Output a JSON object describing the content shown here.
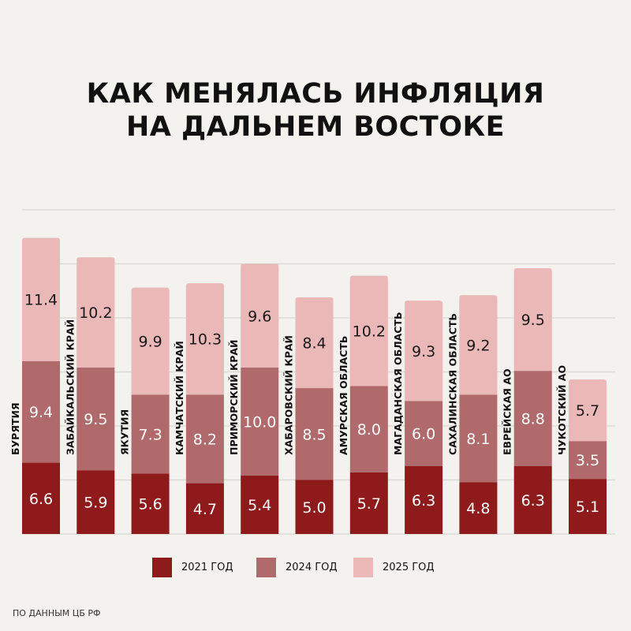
{
  "title_line1": "КАК МЕНЯЛАСЬ ИНФЛЯЦИЯ",
  "title_line2": "НА ДАЛЬНЕМ ВОСТОКЕ",
  "source": "ПО ДАННЫМ ЦБ РФ",
  "chart_data": {
    "type": "bar",
    "stacked": true,
    "title": "КАК МЕНЯЛАСЬ ИНФЛЯЦИЯ НА ДАЛЬНЕМ ВОСТОКЕ",
    "categories": [
      "БУРЯТИЯ",
      "ЗАБАЙКАЛЬСКИЙ КРАЙ",
      "ЯКУТИЯ",
      "КАМЧАТСКИЙ КРАЙ",
      "ПРИМОРСКИЙ КРАЙ",
      "ХАБАРОВСКИЙ КРАЙ",
      "АМУРСКАЯ ОБЛАСТЬ",
      "МАГАДАНСКАЯ ОБЛАСТЬ",
      "САХАЛИНСКАЯ ОБЛАСТЬ",
      "ЕВРЕЙСКАЯ АО",
      "ЧУКОТСКИЙ АО"
    ],
    "series": [
      {
        "name": "2021 ГОД",
        "color": "#8e1a1c",
        "values": [
          6.6,
          5.9,
          5.6,
          4.7,
          5.4,
          5.0,
          5.7,
          6.3,
          4.8,
          6.3,
          5.1
        ]
      },
      {
        "name": "2024 ГОД",
        "color": "#b06a6c",
        "values": [
          9.4,
          9.5,
          7.3,
          8.2,
          10.0,
          8.5,
          8.0,
          6.0,
          8.1,
          8.8,
          3.5
        ]
      },
      {
        "name": "2025 ГОД",
        "color": "#ebb8b8",
        "values": [
          11.4,
          10.2,
          9.9,
          10.3,
          9.6,
          8.4,
          10.2,
          9.3,
          9.2,
          9.5,
          5.7
        ]
      }
    ],
    "ylim": [
      0,
      30
    ],
    "grid": true,
    "legend": "bottom",
    "xlabel": "",
    "ylabel": ""
  }
}
